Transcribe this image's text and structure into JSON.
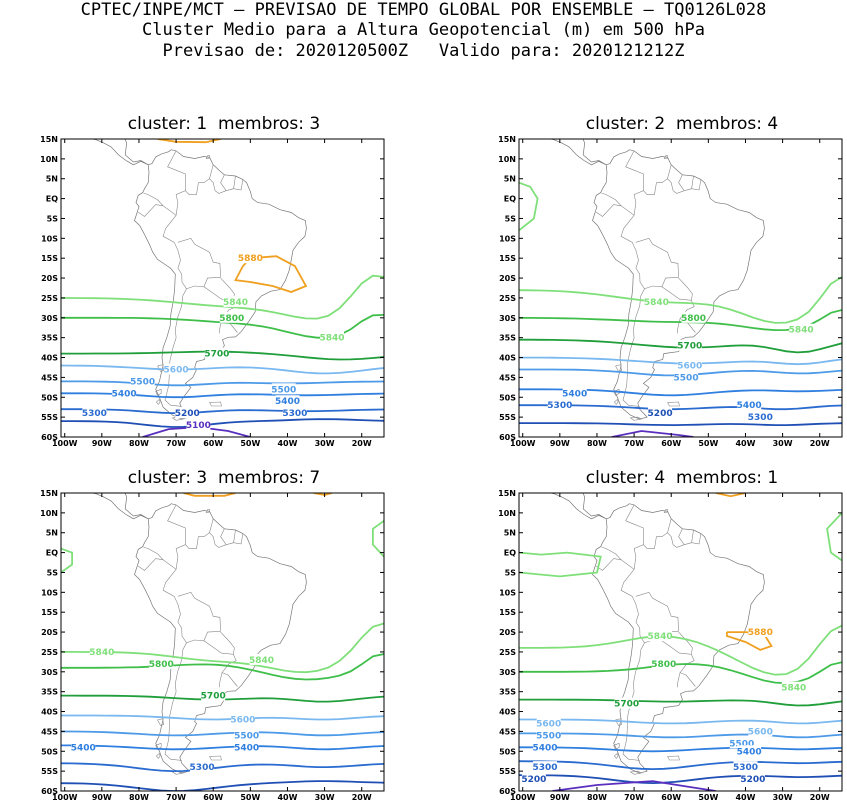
{
  "header": {
    "line1": "CPTEC/INPE/MCT — PREVISAO DE TEMPO GLOBAL POR ENSEMBLE — TQ0126L028",
    "line2": "Cluster Medio para a Altura Geopotencial (m) em 500 hPa",
    "line3": "Previsao de: 2020120500Z   Valido para: 2020121212Z"
  },
  "axes": {
    "lat_labels": [
      "15N",
      "10N",
      "5N",
      "EQ",
      "5S",
      "10S",
      "15S",
      "20S",
      "25S",
      "30S",
      "35S",
      "40S",
      "45S",
      "50S",
      "55S",
      "60S"
    ],
    "lon_labels": [
      "100W",
      "90W",
      "80W",
      "70W",
      "60W",
      "50W",
      "40W",
      "30W",
      "20W"
    ]
  },
  "colors": {
    "c5100": "#5a2fbf",
    "c5200": "#1f4fb5",
    "c5300": "#2a6bd0",
    "c5400": "#2f7fe0",
    "c5500": "#4d9ae8",
    "c5600": "#7ab8f0",
    "c5700": "#1f9e3a",
    "c5800": "#3fbf4a",
    "c5840": "#7fe07a",
    "c5880": "#f0a020"
  },
  "panels": [
    {
      "title": "cluster: 1  membros: 3",
      "labels": [
        {
          "text": "5880",
          "lon": -50,
          "lat": -15
        },
        {
          "text": "5840",
          "lon": -54,
          "lat": -26
        },
        {
          "text": "5840",
          "lon": -28,
          "lat": -35
        },
        {
          "text": "5800",
          "lon": -55,
          "lat": -30
        },
        {
          "text": "5700",
          "lon": -59,
          "lat": -39
        },
        {
          "text": "5600",
          "lon": -70,
          "lat": -43
        },
        {
          "text": "5500",
          "lon": -79,
          "lat": -46
        },
        {
          "text": "5500",
          "lon": -41,
          "lat": -48
        },
        {
          "text": "5400",
          "lon": -84,
          "lat": -49
        },
        {
          "text": "5400",
          "lon": -40,
          "lat": -51
        },
        {
          "text": "5300",
          "lon": -92,
          "lat": -54
        },
        {
          "text": "5300",
          "lon": -38,
          "lat": -54
        },
        {
          "text": "5200",
          "lon": -67,
          "lat": -54
        },
        {
          "text": "5100",
          "lon": -64,
          "lat": -57
        }
      ]
    },
    {
      "title": "cluster: 2  membros: 4",
      "labels": [
        {
          "text": "5840",
          "lon": -64,
          "lat": -26
        },
        {
          "text": "5840",
          "lon": -25,
          "lat": -33
        },
        {
          "text": "5800",
          "lon": -54,
          "lat": -30
        },
        {
          "text": "5700",
          "lon": -55,
          "lat": -37
        },
        {
          "text": "5600",
          "lon": -55,
          "lat": -42
        },
        {
          "text": "5500",
          "lon": -56,
          "lat": -45
        },
        {
          "text": "5400",
          "lon": -86,
          "lat": -49
        },
        {
          "text": "5400",
          "lon": -39,
          "lat": -52
        },
        {
          "text": "5300",
          "lon": -90,
          "lat": -52
        },
        {
          "text": "5300",
          "lon": -36,
          "lat": -55
        },
        {
          "text": "5200",
          "lon": -63,
          "lat": -54
        }
      ]
    },
    {
      "title": "cluster: 3  membros: 7",
      "labels": [
        {
          "text": "5840",
          "lon": -90,
          "lat": -25
        },
        {
          "text": "5840",
          "lon": -47,
          "lat": -27
        },
        {
          "text": "5800",
          "lon": -74,
          "lat": -28
        },
        {
          "text": "5700",
          "lon": -60,
          "lat": -36
        },
        {
          "text": "5600",
          "lon": -52,
          "lat": -42
        },
        {
          "text": "5500",
          "lon": -51,
          "lat": -46
        },
        {
          "text": "5400",
          "lon": -95,
          "lat": -49
        },
        {
          "text": "5400",
          "lon": -51,
          "lat": -49
        },
        {
          "text": "5300",
          "lon": -63,
          "lat": -54
        }
      ]
    },
    {
      "title": "cluster: 4  membros: 1",
      "labels": [
        {
          "text": "5880",
          "lon": -36,
          "lat": -20
        },
        {
          "text": "5840",
          "lon": -63,
          "lat": -21
        },
        {
          "text": "5840",
          "lon": -27,
          "lat": -34
        },
        {
          "text": "5800",
          "lon": -62,
          "lat": -28
        },
        {
          "text": "5700",
          "lon": -72,
          "lat": -38
        },
        {
          "text": "5600",
          "lon": -93,
          "lat": -43
        },
        {
          "text": "5600",
          "lon": -36,
          "lat": -45
        },
        {
          "text": "5500",
          "lon": -93,
          "lat": -46
        },
        {
          "text": "5500",
          "lon": -41,
          "lat": -48
        },
        {
          "text": "5400",
          "lon": -94,
          "lat": -49
        },
        {
          "text": "5400",
          "lon": -39,
          "lat": -50
        },
        {
          "text": "5300",
          "lon": -94,
          "lat": -54
        },
        {
          "text": "5300",
          "lon": -40,
          "lat": -54
        },
        {
          "text": "5200",
          "lon": -97,
          "lat": -57
        },
        {
          "text": "5200",
          "lon": -38,
          "lat": -57
        }
      ]
    }
  ]
}
